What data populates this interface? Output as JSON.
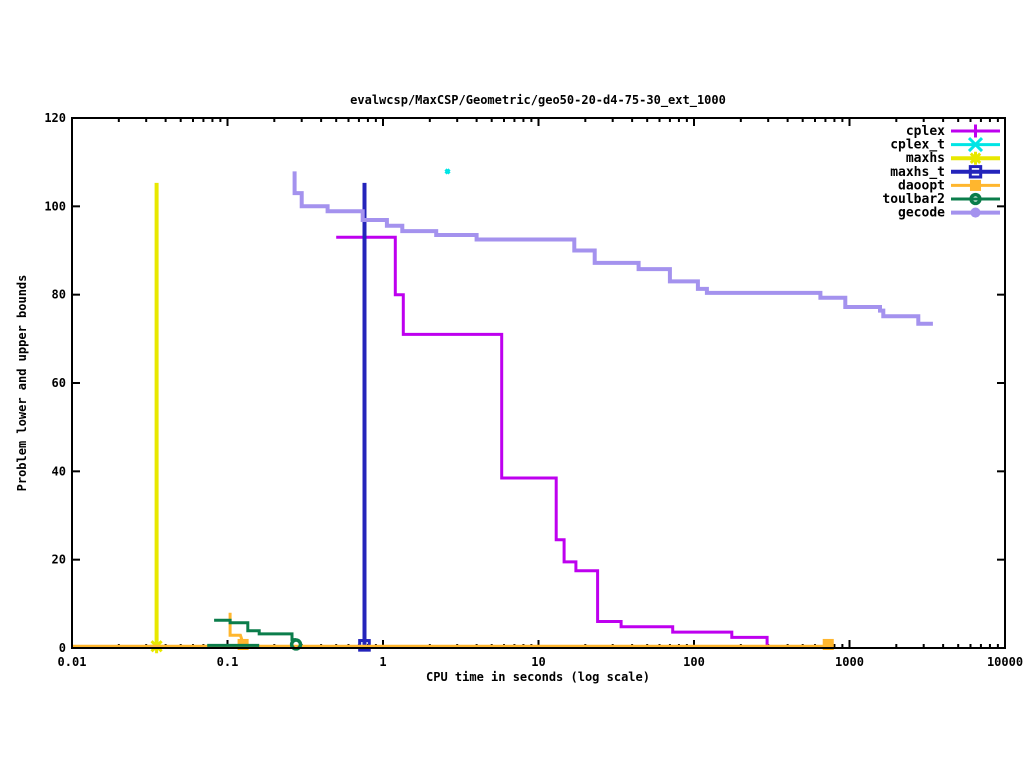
{
  "chart_data": {
    "type": "line",
    "title": "evalwcsp/MaxCSP/Geometric/geo50-20-d4-75-30_ext_1000",
    "xlabel": "CPU time in seconds (log scale)",
    "ylabel": "Problem lower and upper bounds",
    "x_scale": "log",
    "xlim": [
      0.01,
      10000
    ],
    "ylim": [
      0,
      120
    ],
    "grid": false,
    "legend_position": "top-right-inside",
    "x_ticks": [
      {
        "v": 0.01,
        "label": "0.01"
      },
      {
        "v": 0.1,
        "label": "0.1"
      },
      {
        "v": 1,
        "label": "1"
      },
      {
        "v": 10,
        "label": "10"
      },
      {
        "v": 100,
        "label": "100"
      },
      {
        "v": 1000,
        "label": "1000"
      },
      {
        "v": 10000,
        "label": "10000"
      }
    ],
    "y_ticks": [
      {
        "v": 0,
        "label": "0"
      },
      {
        "v": 20,
        "label": "20"
      },
      {
        "v": 40,
        "label": "40"
      },
      {
        "v": 60,
        "label": "60"
      },
      {
        "v": 80,
        "label": "80"
      },
      {
        "v": 100,
        "label": "100"
      },
      {
        "v": 120,
        "label": "120"
      }
    ],
    "series": [
      {
        "name": "cplex",
        "color": "#be00ef",
        "marker": "plus",
        "width": 3,
        "marker_size": 6.5,
        "lines": [
          [
            [
              0.5,
              93
            ],
            [
              1.2,
              93
            ],
            [
              1.2,
              80
            ],
            [
              1.35,
              80
            ],
            [
              1.35,
              71
            ],
            [
              5.8,
              71
            ],
            [
              5.8,
              38.5
            ],
            [
              13,
              38.5
            ],
            [
              13,
              24.5
            ],
            [
              14.6,
              24.5
            ],
            [
              14.6,
              19.5
            ],
            [
              17.4,
              19.5
            ],
            [
              17.4,
              17.5
            ],
            [
              24,
              17.5
            ],
            [
              24,
              6
            ],
            [
              34,
              6
            ],
            [
              34,
              4.8
            ],
            [
              73,
              4.8
            ],
            [
              73,
              3.6
            ],
            [
              175,
              3.6
            ],
            [
              175,
              2.4
            ],
            [
              295,
              2.4
            ],
            [
              295,
              0
            ]
          ]
        ],
        "markers": []
      },
      {
        "name": "cplex_t",
        "color": "#00e5e5",
        "marker": "cross",
        "width": 3,
        "marker_size": 2,
        "lines": [],
        "markers": [
          [
            2.6,
            107.9
          ]
        ]
      },
      {
        "name": "maxhs",
        "color": "#e8e800",
        "marker": "star",
        "width": 4,
        "marker_size": 7,
        "lines": [
          [
            [
              0.035,
              0.3
            ],
            [
              0.035,
              105.3
            ]
          ]
        ],
        "markers": [
          [
            0.035,
            0.4
          ]
        ]
      },
      {
        "name": "maxhs_t",
        "color": "#2424bb",
        "marker": "open-square",
        "width": 4,
        "marker_size": 6,
        "lines": [
          [
            [
              0.76,
              0.5
            ],
            [
              0.76,
              105.3
            ]
          ]
        ],
        "markers": [
          [
            0.76,
            0.6
          ]
        ]
      },
      {
        "name": "daoopt",
        "color": "#ffb62e",
        "marker": "filled-square",
        "width": 3,
        "marker_size": 6.5,
        "lines": [
          [
            [
              0.104,
              8
            ],
            [
              0.104,
              2.9
            ],
            [
              0.121,
              2.9
            ],
            [
              0.126,
              1
            ]
          ],
          [
            [
              0.01,
              0.4
            ],
            [
              730,
              0.4
            ]
          ]
        ],
        "markers": [
          [
            0.126,
            0.8
          ],
          [
            730,
            0.8
          ]
        ]
      },
      {
        "name": "toulbar2",
        "color": "#0b7d4b",
        "marker": "open-circle",
        "width": 3,
        "marker_size": 6.5,
        "lines": [
          [
            [
              0.082,
              6.3
            ],
            [
              0.104,
              6.3
            ],
            [
              0.104,
              5.7
            ],
            [
              0.135,
              5.7
            ],
            [
              0.135,
              3.9
            ],
            [
              0.16,
              3.9
            ],
            [
              0.16,
              3.2
            ],
            [
              0.26,
              3.2
            ],
            [
              0.26,
              1.9
            ],
            [
              0.276,
              1.9
            ]
          ],
          [
            [
              0.074,
              0.6
            ],
            [
              0.16,
              0.6
            ]
          ]
        ],
        "markers": [
          [
            0.276,
            0.8
          ]
        ]
      },
      {
        "name": "gecode",
        "color": "#a492ee",
        "marker": "filled-circle",
        "width": 4,
        "marker_size": 7,
        "lines": [
          [
            [
              0.27,
              107.9
            ],
            [
              0.27,
              103
            ],
            [
              0.3,
              103
            ],
            [
              0.3,
              100
            ],
            [
              0.44,
              100
            ],
            [
              0.44,
              98.9
            ],
            [
              0.74,
              98.9
            ],
            [
              0.74,
              96.9
            ],
            [
              1.06,
              96.9
            ],
            [
              1.06,
              95.6
            ],
            [
              1.33,
              95.6
            ],
            [
              1.33,
              94.4
            ],
            [
              2.2,
              94.4
            ],
            [
              2.2,
              93.5
            ],
            [
              4.0,
              93.5
            ],
            [
              4.0,
              92.5
            ],
            [
              17,
              92.5
            ],
            [
              17,
              90
            ],
            [
              23,
              90
            ],
            [
              23,
              87.2
            ],
            [
              44,
              87.2
            ],
            [
              44,
              85.8
            ],
            [
              70,
              85.8
            ],
            [
              70,
              83
            ],
            [
              106,
              83
            ],
            [
              106,
              81.3
            ],
            [
              121,
              81.3
            ],
            [
              121,
              80.4
            ],
            [
              650,
              80.4
            ],
            [
              650,
              79.3
            ],
            [
              940,
              79.3
            ],
            [
              940,
              77.2
            ],
            [
              1570,
              77.2
            ],
            [
              1570,
              76.4
            ],
            [
              1650,
              76.4
            ],
            [
              1650,
              75.1
            ],
            [
              2770,
              75.1
            ],
            [
              2770,
              73.4
            ],
            [
              3440,
              73.4
            ]
          ]
        ],
        "markers": []
      }
    ]
  }
}
